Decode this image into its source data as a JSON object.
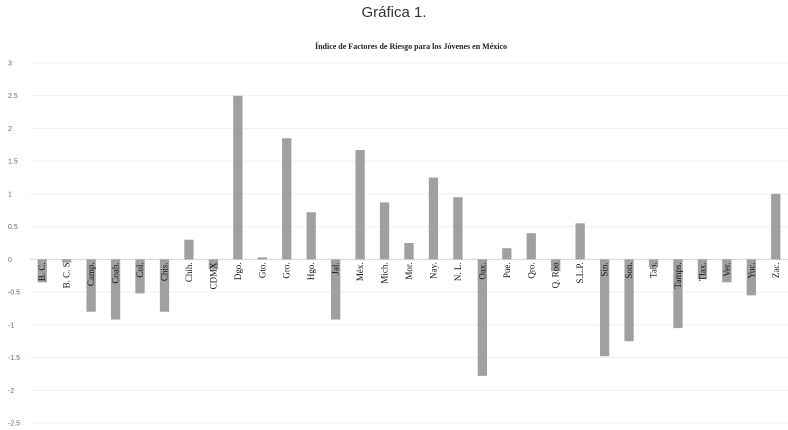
{
  "caption": "Gráfica 1.",
  "chart_data": {
    "type": "bar",
    "title": "Índice de Factores de Riesgo para los Jóvenes en México",
    "xlabel": "",
    "ylabel": "",
    "ylim": [
      -2.5,
      3
    ],
    "yticks": [
      3,
      2.5,
      2,
      1.5,
      1,
      0.5,
      0,
      -0.5,
      -1,
      -1.5,
      -2,
      -2.5
    ],
    "grid": true,
    "legend": "none",
    "bar_color": "#a0a0a0",
    "categories": [
      "B. C.",
      "B. C. S",
      "Camp.",
      "Coah.",
      "Col.",
      "Chis.",
      "Chih.",
      "CDMX",
      "Dgo.",
      "Gto.",
      "Gro.",
      "Hgo.",
      "Jal.",
      "Méx.",
      "Mich.",
      "Mor.",
      "Nay.",
      "N. L.",
      "Oax.",
      "Pue.",
      "Qro.",
      "Q. Roo",
      "S.L.P.",
      "Sin.",
      "Son.",
      "Tab.",
      "Tamps.",
      "Tlax.",
      "Ver.",
      "Yuc.",
      "Zac."
    ],
    "values": [
      -0.35,
      -0.05,
      -0.8,
      -0.92,
      -0.52,
      -0.8,
      0.3,
      -0.15,
      2.5,
      0.03,
      1.85,
      0.72,
      -0.92,
      1.67,
      0.87,
      0.25,
      1.25,
      0.95,
      -1.78,
      0.17,
      0.4,
      -0.18,
      0.55,
      -1.48,
      -1.25,
      -0.12,
      -1.05,
      -0.3,
      -0.35,
      -0.55,
      1.0
    ]
  }
}
